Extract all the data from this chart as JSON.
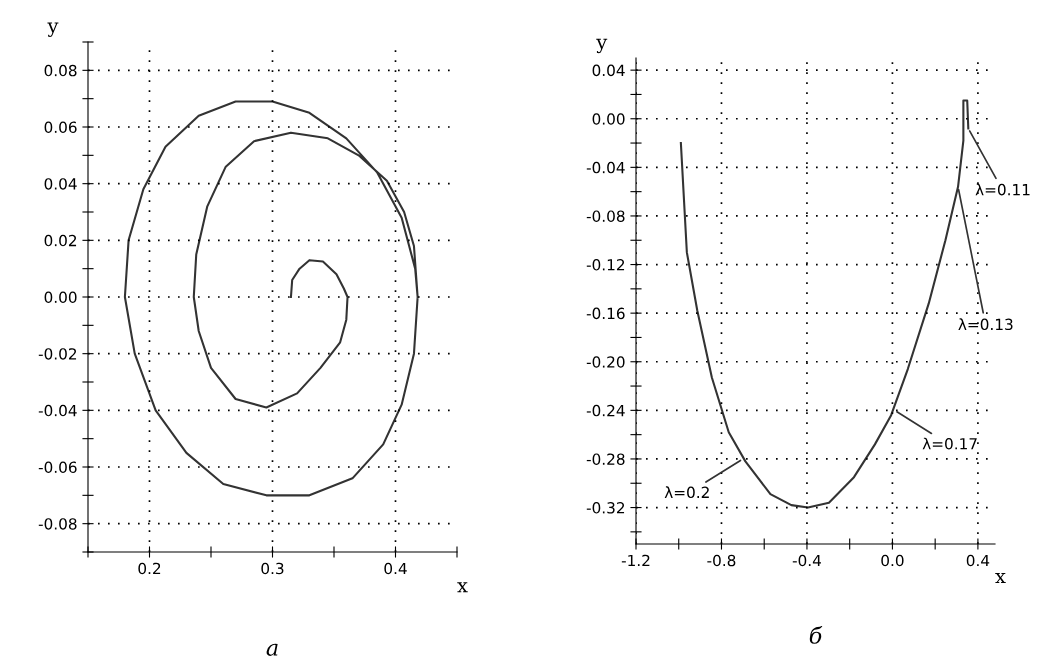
{
  "chart_data": [
    {
      "type": "line",
      "title": "а",
      "xlabel": "x",
      "ylabel": "y",
      "xlim": [
        0.15,
        0.45
      ],
      "ylim": [
        -0.09,
        0.09
      ],
      "xticks": [
        {
          "value": 0.15,
          "label": null
        },
        0.2,
        {
          "value": 0.25,
          "label": null
        },
        0.3,
        {
          "value": 0.35,
          "label": null
        },
        0.4,
        {
          "value": 0.45,
          "label": null
        }
      ],
      "yticks": [
        {
          "value": -0.09,
          "label": null
        },
        -0.08,
        {
          "value": -0.07,
          "label": null
        },
        -0.06,
        {
          "value": -0.05,
          "label": null
        },
        -0.04,
        {
          "value": -0.03,
          "label": null
        },
        -0.02,
        {
          "value": -0.01,
          "label": null
        },
        {
          "value": 0.0,
          "label": "0.00"
        },
        {
          "value": 0.01,
          "label": null
        },
        0.02,
        {
          "value": 0.03,
          "label": null
        },
        0.04,
        {
          "value": 0.05,
          "label": null
        },
        0.06,
        {
          "value": 0.07,
          "label": null
        },
        0.08,
        {
          "value": 0.09,
          "label": null
        }
      ],
      "grid": true,
      "marker": "none",
      "line_style": "solid",
      "series": [
        {
          "color": "#333333",
          "x": [
            0.315,
            0.316,
            0.322,
            0.33,
            0.341,
            0.352,
            0.358,
            0.361,
            0.36,
            0.355,
            0.339,
            0.32,
            0.295,
            0.27,
            0.25,
            0.24,
            0.236,
            0.238,
            0.247,
            0.262,
            0.285,
            0.315,
            0.345,
            0.37,
            0.393,
            0.407,
            0.415,
            0.418,
            0.415,
            0.405,
            0.39,
            0.365,
            0.33,
            0.295,
            0.26,
            0.23,
            0.205,
            0.188,
            0.18,
            0.183,
            0.195,
            0.213,
            0.24,
            0.27,
            0.3,
            0.33,
            0.36,
            0.385,
            0.405,
            0.416,
            0.418
          ],
          "values": [
            0.0,
            0.006,
            0.01,
            0.013,
            0.0125,
            0.008,
            0.003,
            0.0,
            -0.008,
            -0.016,
            -0.025,
            -0.034,
            -0.039,
            -0.036,
            -0.025,
            -0.012,
            0.0,
            0.015,
            0.032,
            0.046,
            0.055,
            0.058,
            0.056,
            0.05,
            0.041,
            0.03,
            0.018,
            0.0,
            -0.02,
            -0.038,
            -0.052,
            -0.064,
            -0.07,
            -0.07,
            -0.066,
            -0.055,
            -0.04,
            -0.02,
            0.0,
            0.02,
            0.038,
            0.053,
            0.064,
            0.069,
            0.069,
            0.065,
            0.056,
            0.044,
            0.028,
            0.01,
            0.0
          ]
        }
      ]
    },
    {
      "type": "line",
      "title": "б",
      "xlabel": "x",
      "ylabel": "y",
      "xlim": [
        -1.2,
        0.48
      ],
      "ylim": [
        -0.35,
        0.05
      ],
      "xticks": [
        -1.2,
        {
          "value": -1.0,
          "label": null
        },
        -0.8,
        {
          "value": -0.6,
          "label": null
        },
        -0.4,
        {
          "value": -0.2,
          "label": null
        },
        {
          "value": 0.0,
          "label": "0.0"
        },
        {
          "value": 0.2,
          "label": null
        },
        0.4
      ],
      "yticks": [
        {
          "value": -0.34,
          "label": null
        },
        -0.32,
        {
          "value": -0.3,
          "label": null
        },
        -0.28,
        {
          "value": -0.26,
          "label": null
        },
        -0.24,
        {
          "value": -0.22,
          "label": null
        },
        {
          "value": -0.2,
          "label": "-0.20"
        },
        {
          "value": -0.18,
          "label": null
        },
        -0.16,
        {
          "value": -0.14,
          "label": null
        },
        -0.12,
        {
          "value": -0.1,
          "label": null
        },
        -0.08,
        {
          "value": -0.06,
          "label": null
        },
        -0.04,
        {
          "value": -0.02,
          "label": null
        },
        {
          "value": 0.0,
          "label": "0.00"
        },
        {
          "value": 0.02,
          "label": null
        },
        0.04
      ],
      "grid": true,
      "marker": "none",
      "line_style": "solid",
      "series": [
        {
          "color": "#333333",
          "x": [
            -0.99,
            -0.962,
            -0.913,
            -0.845,
            -0.766,
            -0.688,
            -0.571,
            -0.473,
            -0.395,
            -0.297,
            -0.18,
            -0.082,
            -0.006,
            0.072,
            0.17,
            0.248,
            0.307,
            0.332,
            0.332,
            0.35,
            0.355
          ],
          "values": [
            -0.02,
            -0.11,
            -0.158,
            -0.213,
            -0.258,
            -0.282,
            -0.309,
            -0.318,
            -0.32,
            -0.316,
            -0.295,
            -0.268,
            -0.244,
            -0.206,
            -0.152,
            -0.1,
            -0.056,
            -0.018,
            0.015,
            0.015,
            -0.008
          ]
        }
      ],
      "annotations": [
        {
          "text": "λ=0.11",
          "x": 0.355,
          "y": -0.008
        },
        {
          "text": "λ=0.13",
          "x": 0.307,
          "y": -0.056
        },
        {
          "text": "λ=0.17",
          "x": 0.01,
          "y": -0.24
        },
        {
          "text": "λ=0.2",
          "x": -0.7,
          "y": -0.28
        }
      ]
    }
  ]
}
